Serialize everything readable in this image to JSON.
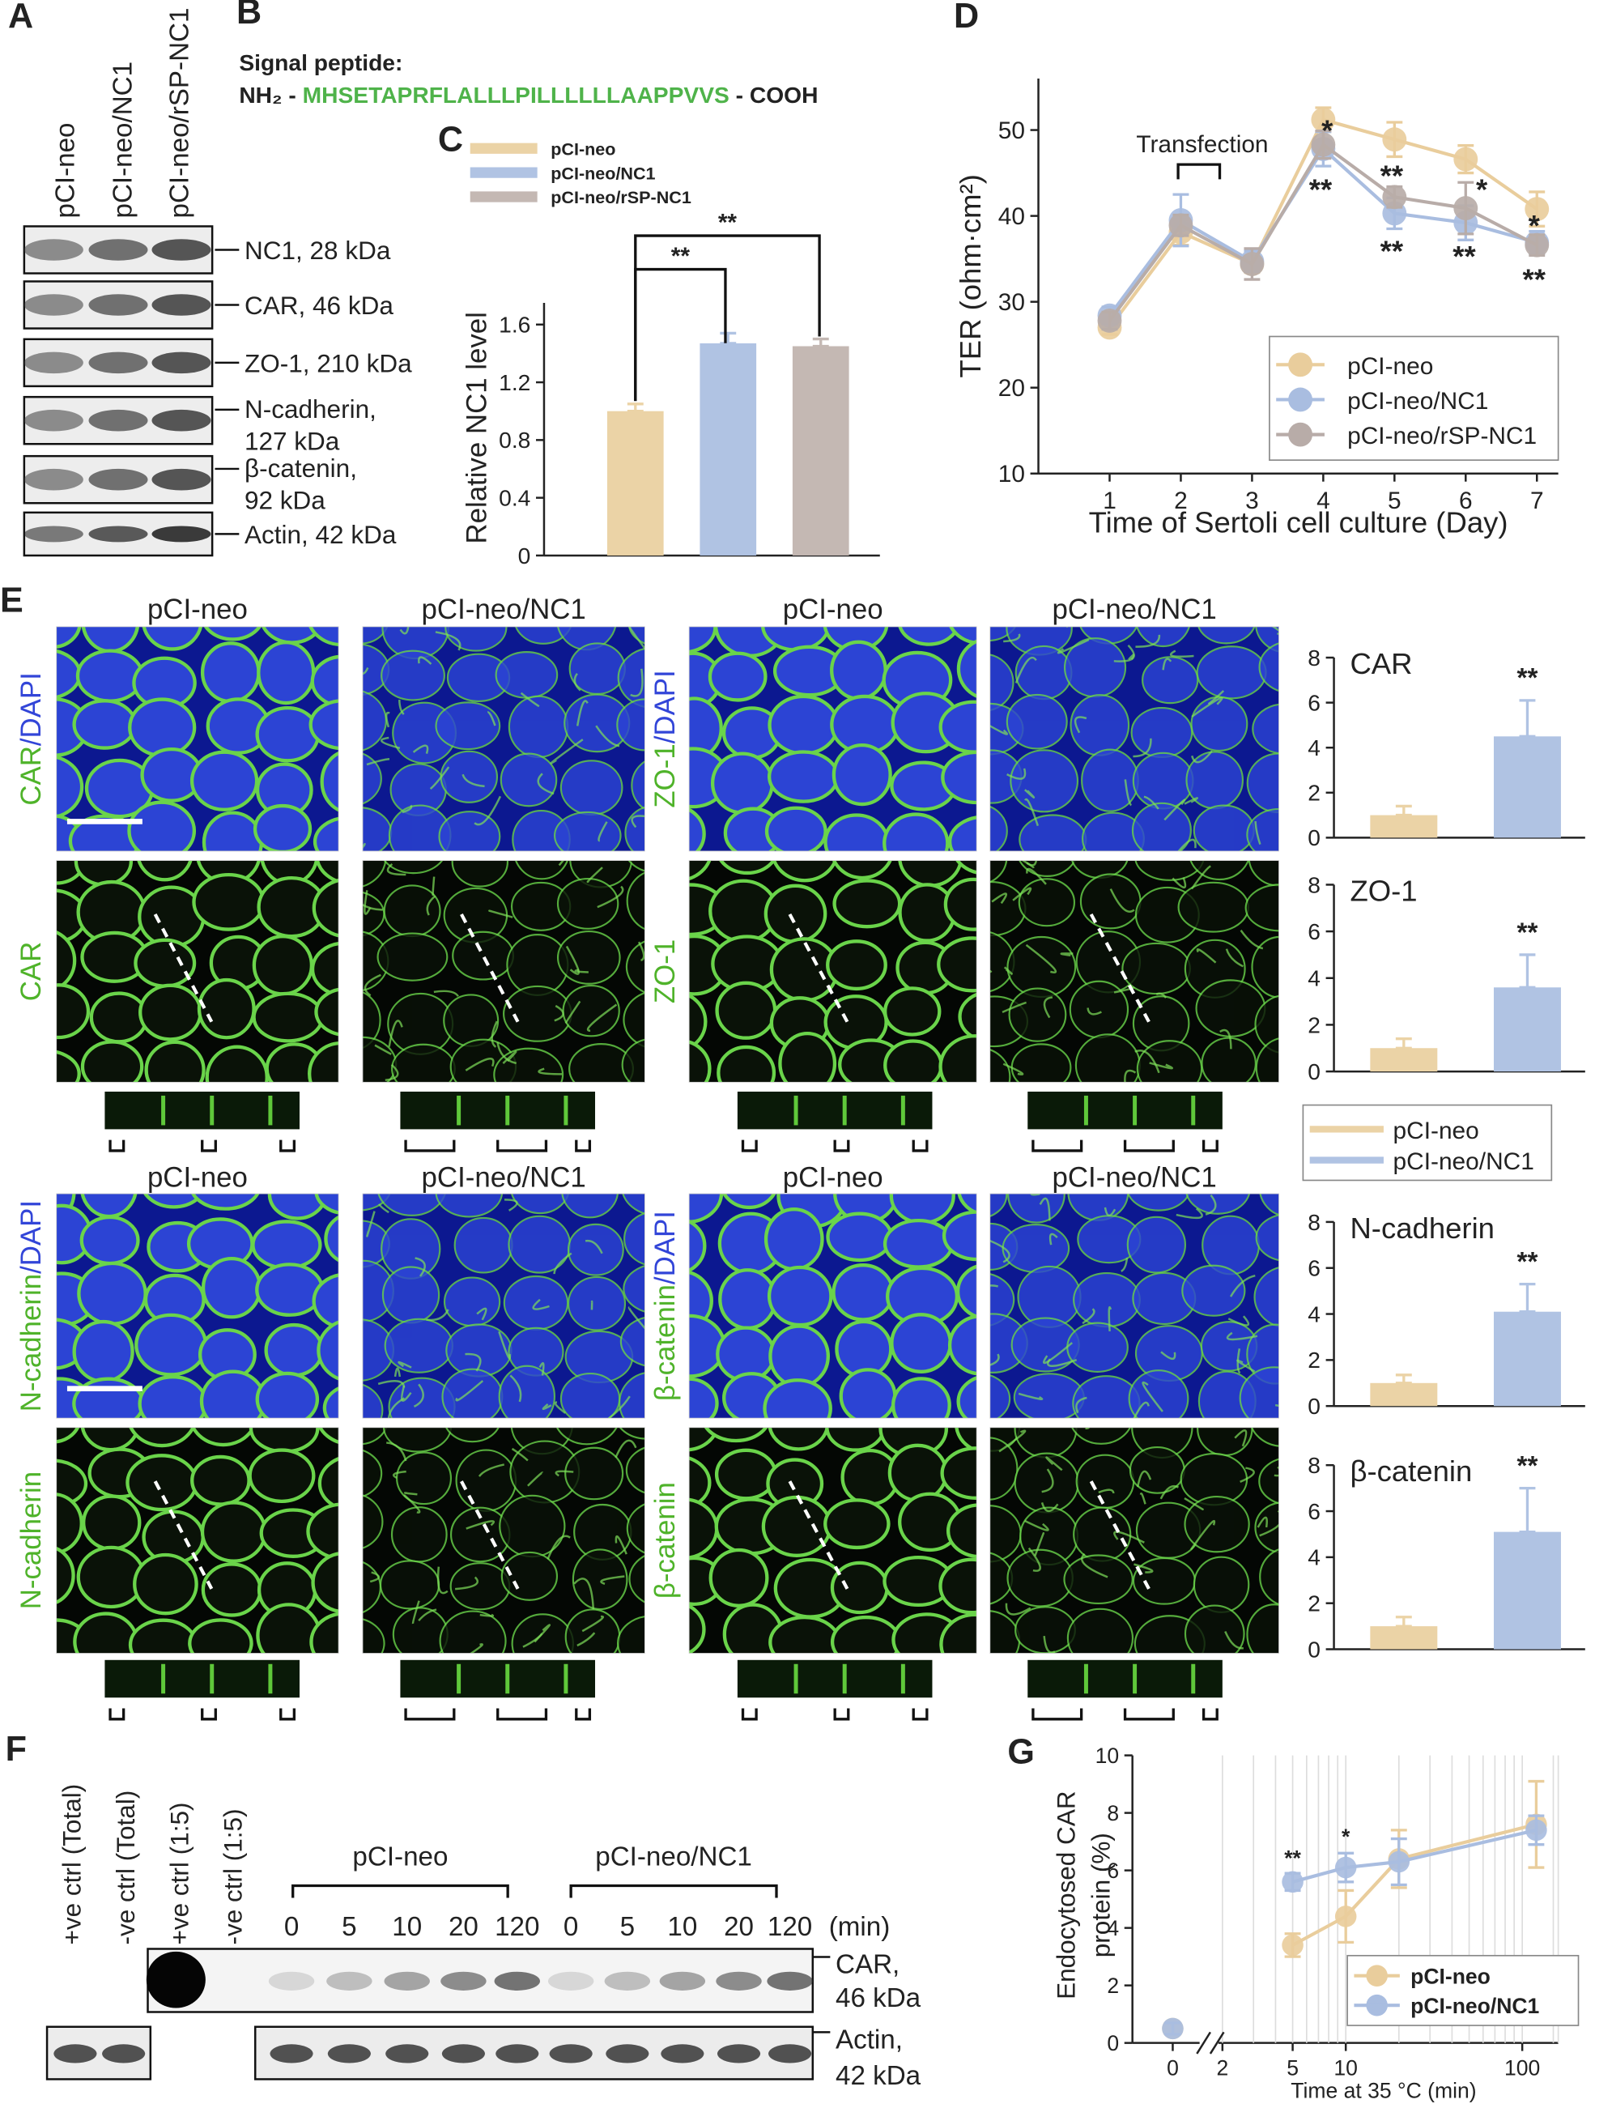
{
  "panel_labels": [
    "A",
    "B",
    "C",
    "D",
    "E",
    "F",
    "G"
  ],
  "panel_a": {
    "lanes": [
      "pCI-neo",
      "pCI-neo/NC1",
      "pCI-neo/rSP-NC1"
    ],
    "bands": [
      [
        "NC1, 28 kDa"
      ],
      [
        "CAR, 46 kDa"
      ],
      [
        "ZO-1, 210 kDa"
      ],
      [
        "N-cadherin,",
        "127 kDa"
      ],
      [
        "β-catenin,",
        "92 kDa"
      ],
      [
        "Actin, 42 kDa"
      ]
    ]
  },
  "panel_b": {
    "title": "Signal peptide:",
    "n_term": "NH₂ - ",
    "sequence": "MHSETAPRFLALLLPILLLLLLAAPPVVS",
    "c_term": " - COOH"
  },
  "panel_e": {
    "titles": [
      [
        "pCI-neo",
        "pCI-neo/NC1",
        "pCI-neo",
        "pCI-neo/NC1"
      ],
      [
        "pCI-neo",
        "pCI-neo/NC1",
        "pCI-neo",
        "pCI-neo/NC1"
      ]
    ],
    "row_labels": [
      [
        [
          "CAR",
          "/DAPI"
        ],
        [
          "CAR"
        ]
      ],
      [
        [
          "ZO-1",
          "/DAPI"
        ],
        [
          "ZO-1"
        ]
      ],
      [
        [
          "N-cadherin",
          "/DAPI"
        ],
        [
          "N-cadherin"
        ]
      ],
      [
        [
          "β-catenin",
          "/DAPI"
        ],
        [
          "β-catenin"
        ]
      ]
    ],
    "legend": {
      "names": [
        "pCI-neo",
        "pCI-neo/NC1"
      ],
      "colors": [
        "#ebd3a6",
        "#b0c3e3"
      ]
    }
  },
  "panel_f": {
    "lanes": [
      "+ve ctrl (Total)",
      "-ve ctrl (Total)",
      "+ve ctrl (1:5)",
      "-ve ctrl (1:5)"
    ],
    "groups": [
      "pCI-neo",
      "pCI-neo/NC1"
    ],
    "times": [
      [
        "0",
        "5",
        "10",
        "20",
        "120"
      ],
      [
        "0",
        "5",
        "10",
        "20",
        "120"
      ]
    ],
    "unit": "(min)",
    "bands": [
      [
        "CAR,",
        "46 kDa"
      ],
      [
        "Actin,",
        "42 kDa"
      ]
    ]
  },
  "chart_data": [
    {
      "type": "bar",
      "categories": [
        "pCI-neo",
        "pCI-neo/NC1",
        "pCI-neo/rSP-NC1"
      ],
      "values": [
        1.0,
        1.47,
        1.45
      ],
      "errors": [
        0.05,
        0.07,
        0.05
      ],
      "colors": [
        "#ebd3a6",
        "#b0c3e3",
        "#c4b8b3"
      ],
      "ylabel": "Relative NC1 level",
      "ylim": [
        0,
        1.75
      ],
      "yticks": [
        0,
        0.4,
        0.8,
        1.2,
        1.6
      ],
      "annotations": [
        "**",
        "**"
      ]
    },
    {
      "type": "line",
      "x": [
        1,
        2,
        3,
        4,
        5,
        6,
        7
      ],
      "xlim": [
        0,
        7.3
      ],
      "xticks": [
        1,
        2,
        3,
        4,
        5,
        6,
        7
      ],
      "ylim": [
        10,
        56
      ],
      "yticks": [
        10,
        20,
        30,
        40,
        50
      ],
      "xlabel": "Time of Sertoli cell culture (Day)",
      "ylabel": "TER (ohm·cm²)",
      "series": [
        {
          "name": "pCI-neo",
          "color": "#e9cd9c",
          "values": [
            27.0,
            38.1,
            34.4,
            51.2,
            48.9,
            46.6,
            40.8
          ],
          "errors": [
            0.8,
            1.5,
            1.0,
            1.4,
            2.0,
            1.6,
            2.0
          ]
        },
        {
          "name": "pCI-neo/NC1",
          "color": "#a9bde0",
          "values": [
            28.4,
            39.5,
            34.7,
            47.8,
            40.3,
            39.2,
            36.9
          ],
          "errors": [
            1.0,
            3.0,
            1.2,
            2.0,
            1.8,
            2.0,
            1.3
          ]
        },
        {
          "name": "pCI-neo/rSP-NC1",
          "color": "#b8aca8",
          "values": [
            27.8,
            38.9,
            34.4,
            48.3,
            42.2,
            40.9,
            36.6
          ],
          "errors": [
            1.0,
            1.2,
            1.8,
            1.6,
            1.2,
            3.0,
            1.2
          ]
        }
      ],
      "annotations": [
        "Transfection",
        "*",
        "**",
        "**",
        "**",
        "*",
        "**",
        "*",
        "**"
      ]
    },
    {
      "type": "bar",
      "title": "CAR",
      "title_color": "#4fb32a",
      "categories": [
        null,
        null
      ],
      "values": [
        1.0,
        4.5
      ],
      "errors": [
        0.4,
        1.6
      ],
      "colors": [
        "#ebd3a6",
        "#b0c3e3"
      ],
      "ylim": [
        0,
        8
      ],
      "yticks": [
        0,
        2,
        4,
        6,
        8
      ],
      "annotations": [
        "**"
      ]
    },
    {
      "type": "bar",
      "title": "ZO-1",
      "title_color": "#4fb32a",
      "categories": [
        null,
        null
      ],
      "values": [
        1.0,
        3.6
      ],
      "errors": [
        0.4,
        1.4
      ],
      "colors": [
        "#ebd3a6",
        "#b0c3e3"
      ],
      "ylim": [
        0,
        8
      ],
      "yticks": [
        0,
        2,
        4,
        6,
        8
      ],
      "annotations": [
        "**"
      ]
    },
    {
      "type": "bar",
      "title": "N-cadherin",
      "title_color": "#4fb32a",
      "categories": [
        null,
        null
      ],
      "values": [
        1.0,
        4.1
      ],
      "errors": [
        0.35,
        1.2
      ],
      "colors": [
        "#ebd3a6",
        "#b0c3e3"
      ],
      "ylim": [
        0,
        8
      ],
      "yticks": [
        0,
        2,
        4,
        6,
        8
      ],
      "annotations": [
        "**"
      ]
    },
    {
      "type": "bar",
      "title": "β-catenin",
      "title_color": "#4fb32a",
      "categories": [
        null,
        null
      ],
      "values": [
        1.0,
        5.1
      ],
      "errors": [
        0.4,
        1.9
      ],
      "colors": [
        "#ebd3a6",
        "#b0c3e3"
      ],
      "ylim": [
        0,
        8
      ],
      "yticks": [
        0,
        2,
        4,
        6,
        8
      ],
      "annotations": [
        "**"
      ]
    },
    {
      "type": "line",
      "xscale": "log",
      "x_break": true,
      "x": [
        0,
        5,
        10,
        20,
        120
      ],
      "xlim": [
        0,
        160
      ],
      "xticks": [
        0,
        2,
        5,
        10,
        100
      ],
      "ylim": [
        0,
        10
      ],
      "yticks": [
        0,
        2,
        4,
        6,
        8,
        10
      ],
      "xlabel": "Time at 35 °C (min)",
      "ylabel": [
        "Endocytosed CAR",
        "protein (%)"
      ],
      "series": [
        {
          "name": "pCI-neo",
          "color": "#e9cd9c",
          "values": [
            0.5,
            3.4,
            4.4,
            6.4,
            7.6
          ],
          "errors": [
            0.2,
            0.4,
            0.9,
            1.0,
            1.5
          ]
        },
        {
          "name": "pCI-neo/NC1",
          "color": "#a9bde0",
          "values": [
            0.5,
            5.6,
            6.1,
            6.3,
            7.4
          ],
          "errors": [
            0.2,
            0.3,
            0.5,
            0.8,
            0.5
          ]
        }
      ],
      "annotations": [
        "**",
        "*"
      ]
    }
  ]
}
